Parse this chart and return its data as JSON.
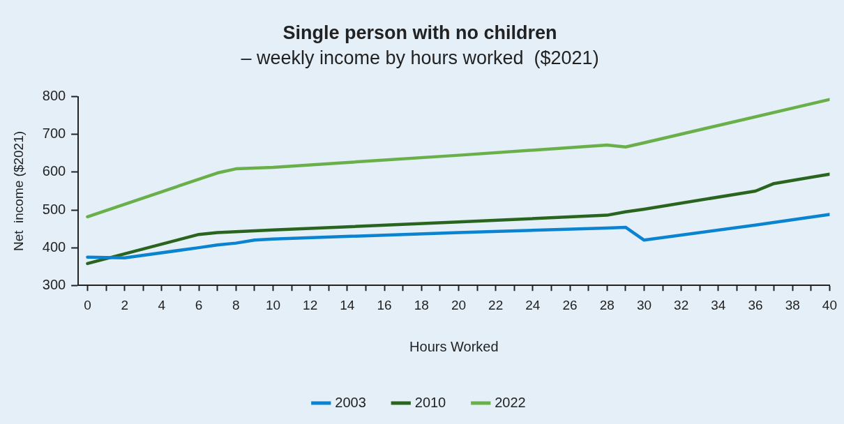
{
  "chart_data": {
    "type": "line",
    "title": "Single person with no children",
    "subtitle": "– weekly income by hours worked  ($2021)",
    "xlabel": "Hours Worked",
    "ylabel": "Net  income ($2021)",
    "series": [
      {
        "name": "2003",
        "color": "#0a84d0",
        "x": [
          0,
          2,
          6,
          7,
          8,
          9,
          10,
          20,
          28,
          29,
          30,
          36,
          40
        ],
        "values": [
          375,
          373,
          400,
          407,
          412,
          420,
          423,
          440,
          452,
          454,
          420,
          460,
          488
        ]
      },
      {
        "name": "2010",
        "color": "#2a6520",
        "x": [
          0,
          6,
          7,
          10,
          20,
          28,
          29,
          30,
          36,
          37,
          40
        ],
        "values": [
          358,
          435,
          440,
          447,
          468,
          486,
          495,
          502,
          550,
          570,
          595
        ]
      },
      {
        "name": "2022",
        "color": "#6ab04a",
        "x": [
          0,
          7,
          8,
          10,
          20,
          28,
          29,
          30,
          40
        ],
        "values": [
          482,
          598,
          609,
          613,
          645,
          672,
          667,
          678,
          793
        ]
      }
    ],
    "xlim": [
      -0.5,
      40
    ],
    "ylim": [
      300,
      800
    ],
    "xticks": [
      0,
      {
        "value": 1,
        "label": null
      },
      2,
      {
        "value": 3,
        "label": null
      },
      4,
      {
        "value": 5,
        "label": null
      },
      6,
      {
        "value": 7,
        "label": null
      },
      8,
      {
        "value": 9,
        "label": null
      },
      10,
      {
        "value": 11,
        "label": null
      },
      12,
      {
        "value": 13,
        "label": null
      },
      14,
      {
        "value": 15,
        "label": null
      },
      16,
      {
        "value": 17,
        "label": null
      },
      18,
      {
        "value": 19,
        "label": null
      },
      20,
      {
        "value": 21,
        "label": null
      },
      22,
      {
        "value": 23,
        "label": null
      },
      24,
      {
        "value": 25,
        "label": null
      },
      26,
      {
        "value": 27,
        "label": null
      },
      28,
      {
        "value": 29,
        "label": null
      },
      30,
      {
        "value": 31,
        "label": null
      },
      32,
      {
        "value": 33,
        "label": null
      },
      34,
      {
        "value": 35,
        "label": null
      },
      36,
      {
        "value": 37,
        "label": null
      },
      38,
      {
        "value": 39,
        "label": null
      },
      40
    ],
    "yticks": [
      300,
      400,
      500,
      600,
      700,
      800
    ],
    "grid": false,
    "legend": "bottom",
    "marker": "none",
    "line_style": "solid"
  }
}
